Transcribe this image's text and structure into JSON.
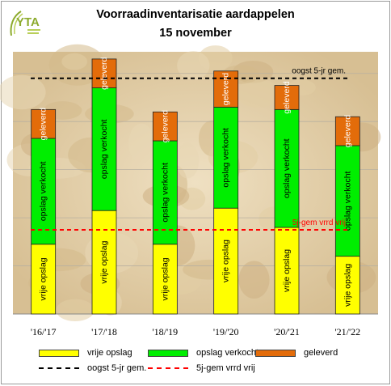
{
  "header": {
    "title_line1": "Voorraadinventarisatie aardappelen",
    "title_line2": "15 november",
    "logo_text": "YTA"
  },
  "colors": {
    "vrije_opslag": "#ffff00",
    "opslag_verkocht": "#00ee00",
    "geleverd": "#e36c0a",
    "oogst_line": "#000000",
    "vrij_line": "#ff0000"
  },
  "chart_data": {
    "type": "bar",
    "stacked": true,
    "categories": [
      "'16/'17",
      "'17/'18",
      "'18/'19",
      "'19/'20",
      "'20/'21",
      "'21/'22"
    ],
    "series": [
      {
        "name": "vrije opslag",
        "values": [
          1.45,
          2.15,
          1.45,
          2.2,
          1.8,
          1.2
        ]
      },
      {
        "name": "opslag verkocht",
        "values": [
          2.2,
          2.55,
          2.15,
          2.1,
          2.45,
          2.3
        ]
      },
      {
        "name": "geleverd",
        "values": [
          0.6,
          0.6,
          0.6,
          0.75,
          0.5,
          0.6
        ]
      }
    ],
    "reference_lines": [
      {
        "name": "oogst 5-jr gem.",
        "value": 4.9,
        "label": "oogst 5-jr gem."
      },
      {
        "name": "5j-gem vrrd vrij",
        "value": 1.75,
        "label": "5j-gem vrrd vrij"
      }
    ],
    "segment_labels": [
      "vrije opslag",
      "opslag verkocht",
      "geleverd"
    ],
    "ylim": [
      0,
      5.45
    ],
    "gridlines": [
      1,
      2,
      3,
      4,
      5
    ],
    "grid": true,
    "legend_position": "bottom"
  },
  "legend": {
    "vrije_opslag": "vrije opslag",
    "opslag_verkocht": "opslag verkocht",
    "geleverd": "geleverd",
    "oogst": "oogst 5-jr gem.",
    "vrij": "5j-gem vrrd vrij"
  }
}
